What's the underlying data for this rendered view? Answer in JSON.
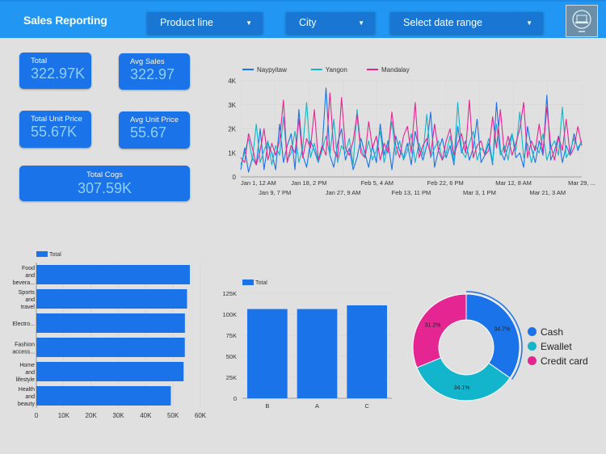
{
  "header": {
    "title": "Sales Reporting",
    "filters": {
      "product_line": "Product line",
      "city": "City",
      "date_range": "Select date range"
    }
  },
  "kpis": {
    "total": {
      "label": "Total",
      "value": "322.97K"
    },
    "avg_sales": {
      "label": "Avg Sales",
      "value": "322.97"
    },
    "total_unit_price": {
      "label": "Total Unit Price",
      "value": "55.67K"
    },
    "avg_unit_price": {
      "label": "Avg Unit Price",
      "value": "55.67"
    },
    "total_cogs": {
      "label": "Total Cogs",
      "value": "307.59K"
    }
  },
  "colors": {
    "header": "#2196f3",
    "kpi": "#1a73e8",
    "bar": "#1a73e8",
    "naypyitaw": "#1a73e8",
    "yangon": "#12b5cb",
    "mandalay": "#e52592"
  },
  "chart_data": [
    {
      "type": "line",
      "series_names": [
        "Naypyitaw",
        "Yangon",
        "Mandalay"
      ],
      "y_ticks": [
        "0",
        "1K",
        "2K",
        "3K",
        "4K"
      ],
      "ylim": [
        0,
        4000
      ],
      "x_ticks_top": [
        "Jan 1, 12 AM",
        "Jan 18, 2 PM",
        "Feb 5, 4 AM",
        "Feb 22, 6 PM",
        "Mar 12, 8 AM",
        "Mar 29, ..."
      ],
      "x_ticks_bottom": [
        "Jan 9, 7 PM",
        "Jan 27, 9 AM",
        "Feb 13, 11 PM",
        "Mar 3, 1 PM",
        "Mar 21, 3 AM"
      ],
      "num_points": 89,
      "series": [
        {
          "name": "Naypyitaw",
          "values": [
            300,
            1200,
            200,
            800,
            500,
            2000,
            300,
            1400,
            1000,
            300,
            2200,
            600,
            1300,
            1800,
            300,
            2800,
            900,
            400,
            1500,
            1100,
            600,
            1200,
            3700,
            900,
            400,
            1400,
            2000,
            700,
            1200,
            300,
            800,
            1600,
            1000,
            400,
            1300,
            600,
            2200,
            900,
            1500,
            300,
            1700,
            1100,
            800,
            1400,
            500,
            1900,
            1200,
            700,
            1300,
            2700,
            400,
            1100,
            1600,
            800,
            1300,
            500,
            2100,
            1000,
            1500,
            700,
            1200,
            2400,
            600,
            900,
            1400,
            500,
            3100,
            1100,
            700,
            1300,
            1800,
            800,
            1000,
            400,
            2100,
            1200,
            600,
            1500,
            900,
            3400,
            700,
            1100,
            1700,
            600,
            1300,
            900,
            1800,
            1100,
            1500
          ]
        },
        {
          "name": "Yangon",
          "values": [
            500,
            1000,
            1600,
            700,
            2200,
            600,
            1100,
            1500,
            500,
            1300,
            900,
            2500,
            700,
            1000,
            1900,
            600,
            1200,
            3100,
            800,
            1400,
            600,
            1100,
            1700,
            900,
            2400,
            600,
            1300,
            1000,
            1600,
            500,
            2800,
            1200,
            800,
            1500,
            700,
            1100,
            1900,
            600,
            1300,
            2300,
            900,
            1500,
            700,
            1100,
            1800,
            600,
            1400,
            900,
            2600,
            800,
            1200,
            1500,
            700,
            1000,
            1700,
            600,
            3100,
            1100,
            800,
            1400,
            1900,
            700,
            1200,
            1000,
            1600,
            600,
            2200,
            900,
            1300,
            700,
            1800,
            1100,
            2700,
            800,
            1400,
            600,
            1300,
            1000,
            1800,
            700,
            1200,
            1500,
            900,
            2900,
            800,
            1100,
            1600,
            1200,
            1500
          ]
        },
        {
          "name": "Mandalay",
          "values": [
            800,
            600,
            1800,
            1200,
            500,
            1100,
            2000,
            700,
            1400,
            900,
            1500,
            3200,
            600,
            1300,
            1000,
            2400,
            800,
            1600,
            1200,
            2800,
            700,
            1300,
            900,
            3500,
            1100,
            800,
            3300,
            1200,
            900,
            1500,
            2600,
            1000,
            800,
            2300,
            1200,
            1700,
            700,
            1400,
            1000,
            2700,
            1300,
            800,
            1700,
            2100,
            1000,
            3100,
            800,
            1300,
            1600,
            900,
            2200,
            1100,
            700,
            1500,
            2000,
            900,
            1400,
            1800,
            1000,
            3200,
            800,
            1300,
            1500,
            900,
            1100,
            2500,
            1200,
            2800,
            1000,
            1700,
            900,
            1400,
            2000,
            3100,
            800,
            1500,
            1100,
            2200,
            1000,
            2900,
            1300,
            700,
            1700,
            1100,
            2400,
            900,
            1200,
            2100,
            1300
          ]
        }
      ]
    },
    {
      "type": "bar",
      "orientation": "horizontal",
      "series_names": [
        "Total"
      ],
      "categories": [
        [
          "Food",
          "and",
          "bevera..."
        ],
        [
          "Sports",
          "and",
          "travel"
        ],
        [
          "Electro..."
        ],
        [
          "Fashion",
          "access..."
        ],
        [
          "Home",
          "and",
          "lifestyle"
        ],
        [
          "Health",
          "and",
          "beauty"
        ]
      ],
      "values": [
        56145,
        55123,
        54338,
        54306,
        53862,
        49194
      ],
      "x_ticks": [
        "0",
        "10K",
        "20K",
        "30K",
        "40K",
        "50K",
        "60K"
      ],
      "xlim": [
        0,
        60000
      ]
    },
    {
      "type": "bar",
      "orientation": "vertical",
      "series_names": [
        "Total"
      ],
      "categories": [
        "B",
        "A",
        "C"
      ],
      "values": [
        106198,
        106200,
        110568
      ],
      "y_ticks": [
        "0",
        "25K",
        "50K",
        "75K",
        "100K",
        "125K"
      ],
      "ylim": [
        0,
        125000
      ]
    },
    {
      "type": "pie",
      "labels": [
        "Cash",
        "Ewallet",
        "Credit card"
      ],
      "values": [
        34.7,
        34.1,
        31.2
      ],
      "value_labels": [
        "34.7%",
        "34.1%",
        "31.2%"
      ],
      "colors": [
        "#1a73e8",
        "#12b5cb",
        "#e52592"
      ]
    }
  ]
}
